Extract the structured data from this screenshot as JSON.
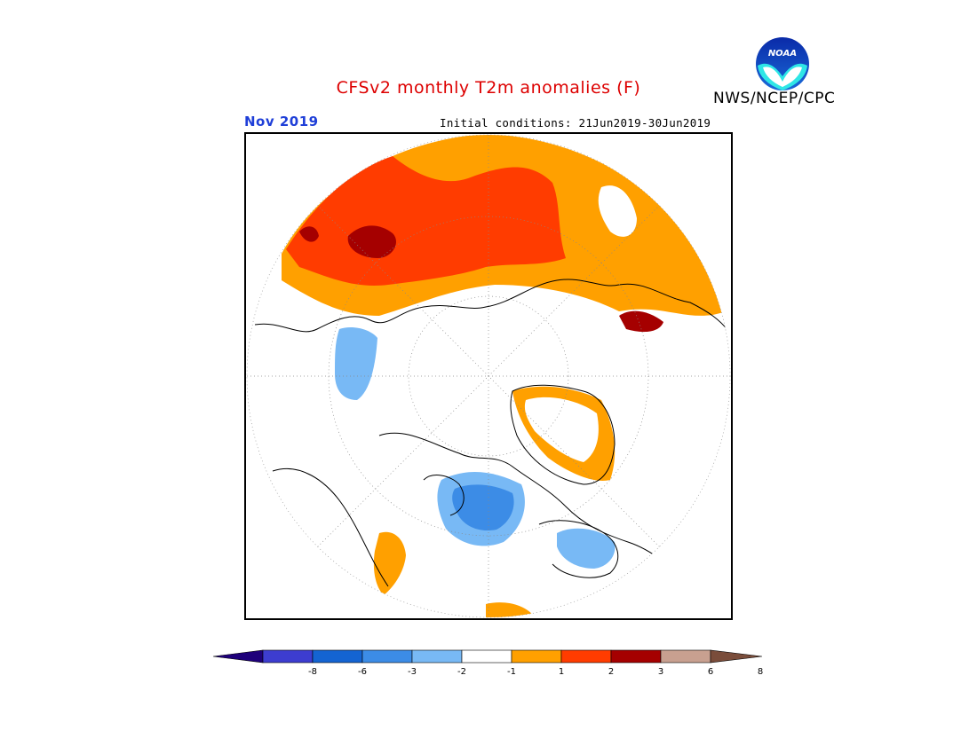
{
  "header": {
    "title": "CFSv2 monthly T2m anomalies (F)",
    "title_color": "#dd0000",
    "agency": "NWS/NCEP/CPC",
    "month": "Nov 2019",
    "month_color": "#1f3fd8",
    "initial_conditions": "Initial conditions: 21Jun2019-30Jun2019"
  },
  "logo": {
    "name": "noaa-logo",
    "text": "NOAA"
  },
  "map": {
    "projection": "north-polar-stereographic",
    "variable": "T2m anomaly",
    "units": "F"
  },
  "colorbar": {
    "colors": [
      "#1e007a",
      "#3d3dd0",
      "#1464d2",
      "#3c8ce6",
      "#78b9f5",
      "#ffffff",
      "#ffa000",
      "#ff3c00",
      "#a50000",
      "#c8a090",
      "#7a4d3b"
    ],
    "tick_labels": [
      "-8",
      "-6",
      "-3",
      "-2",
      "-1",
      "1",
      "2",
      "3",
      "6",
      "8"
    ]
  }
}
